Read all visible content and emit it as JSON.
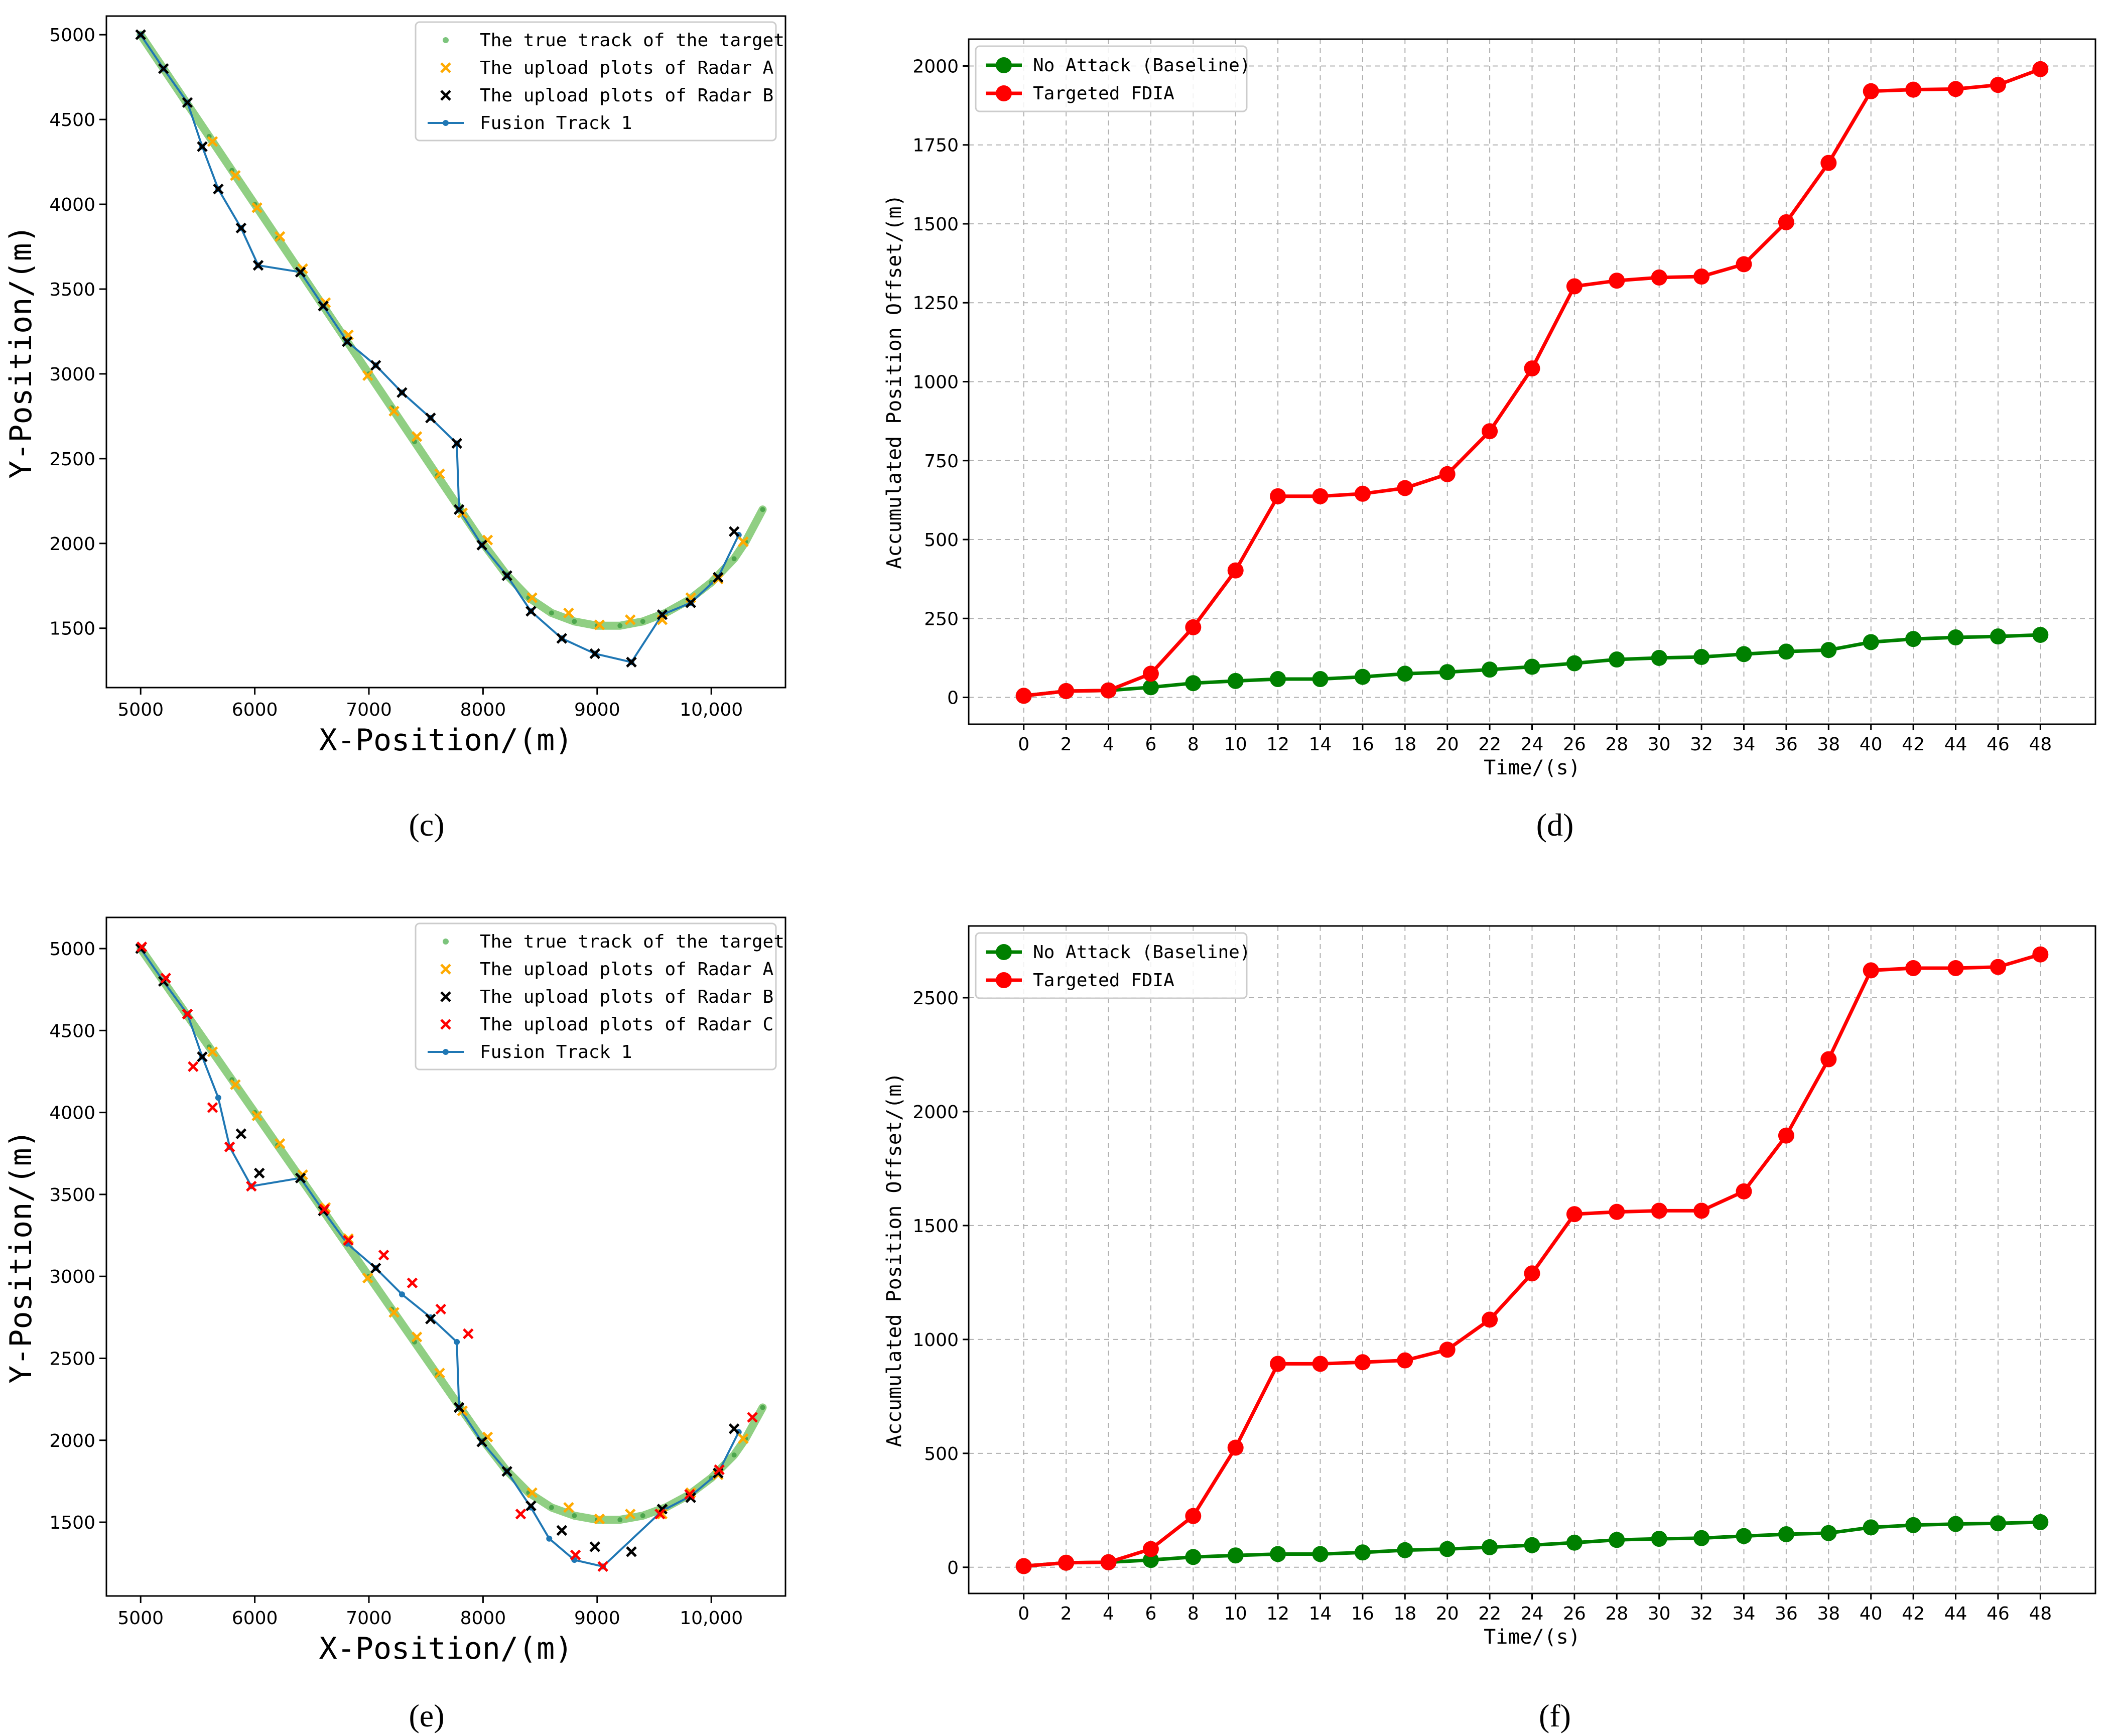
{
  "colors": {
    "green": "#008000",
    "red": "#ff0000",
    "orange": "#ffaa00",
    "black": "#000000",
    "fusion": "#1f77b4",
    "truth": "#6bbf59"
  },
  "chart_data": [
    {
      "id": "c",
      "type": "scatter",
      "caption": "(c)",
      "xlabel": "X-Position/(m)",
      "ylabel": "Y-Position/(m)",
      "xlim": [
        4700,
        10650
      ],
      "ylim": [
        1150,
        5110
      ],
      "xticks": [
        5000,
        6000,
        7000,
        8000,
        9000,
        10000
      ],
      "xtick_labels": [
        "5000",
        "6000",
        "7000",
        "8000",
        "9000",
        "10,000"
      ],
      "yticks": [
        1500,
        2000,
        2500,
        3000,
        3500,
        4000,
        4500,
        5000
      ],
      "ytick_labels": [
        "1500",
        "2000",
        "2500",
        "3000",
        "3500",
        "4000",
        "4500",
        "5000"
      ],
      "legend": [
        "The true track of the target",
        "The upload plots of Radar A",
        "The upload plots of Radar B",
        "Fusion Track 1"
      ],
      "truth": [
        [
          5000,
          5000
        ],
        [
          5200,
          4800
        ],
        [
          5400,
          4600
        ],
        [
          5600,
          4400
        ],
        [
          5800,
          4200
        ],
        [
          6000,
          4000
        ],
        [
          6200,
          3800
        ],
        [
          6400,
          3600
        ],
        [
          6600,
          3400
        ],
        [
          6800,
          3200
        ],
        [
          7000,
          3000
        ],
        [
          7200,
          2800
        ],
        [
          7400,
          2600
        ],
        [
          7600,
          2400
        ],
        [
          7800,
          2200
        ],
        [
          8000,
          2000
        ],
        [
          8200,
          1820
        ],
        [
          8400,
          1680
        ],
        [
          8600,
          1590
        ],
        [
          8800,
          1540
        ],
        [
          9000,
          1515
        ],
        [
          9200,
          1515
        ],
        [
          9400,
          1540
        ],
        [
          9600,
          1590
        ],
        [
          9800,
          1665
        ],
        [
          10000,
          1770
        ],
        [
          10200,
          1910
        ],
        [
          10300,
          2010
        ],
        [
          10450,
          2200
        ]
      ],
      "radar_a": [
        [
          5630,
          4370
        ],
        [
          5830,
          4170
        ],
        [
          6020,
          3980
        ],
        [
          6220,
          3810
        ],
        [
          6420,
          3620
        ],
        [
          6620,
          3420
        ],
        [
          6820,
          3230
        ],
        [
          6990,
          2990
        ],
        [
          7220,
          2780
        ],
        [
          7420,
          2630
        ],
        [
          7620,
          2410
        ],
        [
          7820,
          2180
        ],
        [
          8040,
          2020
        ],
        [
          8430,
          1680
        ],
        [
          8750,
          1590
        ],
        [
          9020,
          1520
        ],
        [
          9290,
          1550
        ],
        [
          9570,
          1550
        ],
        [
          9820,
          1680
        ],
        [
          10060,
          1790
        ],
        [
          10280,
          2010
        ]
      ],
      "radar_b": [
        [
          5000,
          5000
        ],
        [
          5200,
          4800
        ],
        [
          5410,
          4600
        ],
        [
          5540,
          4340
        ],
        [
          5680,
          4090
        ],
        [
          5880,
          3860
        ],
        [
          6030,
          3640
        ],
        [
          6400,
          3600
        ],
        [
          6600,
          3400
        ],
        [
          6810,
          3190
        ],
        [
          7060,
          3050
        ],
        [
          7290,
          2890
        ],
        [
          7540,
          2740
        ],
        [
          7770,
          2590
        ],
        [
          7790,
          2200
        ],
        [
          7990,
          1990
        ],
        [
          8210,
          1810
        ],
        [
          8420,
          1600
        ],
        [
          8690,
          1440
        ],
        [
          8980,
          1350
        ],
        [
          9300,
          1300
        ],
        [
          9570,
          1580
        ],
        [
          9820,
          1650
        ],
        [
          10060,
          1800
        ],
        [
          10200,
          2070
        ]
      ],
      "radar_c": [],
      "fusion": [
        [
          5000,
          5000
        ],
        [
          5200,
          4800
        ],
        [
          5410,
          4600
        ],
        [
          5540,
          4340
        ],
        [
          5680,
          4090
        ],
        [
          5880,
          3860
        ],
        [
          6030,
          3640
        ],
        [
          6400,
          3600
        ],
        [
          6600,
          3400
        ],
        [
          6810,
          3190
        ],
        [
          7060,
          3050
        ],
        [
          7290,
          2890
        ],
        [
          7540,
          2740
        ],
        [
          7770,
          2590
        ],
        [
          7790,
          2200
        ],
        [
          7990,
          1990
        ],
        [
          8210,
          1810
        ],
        [
          8420,
          1600
        ],
        [
          8690,
          1440
        ],
        [
          8980,
          1350
        ],
        [
          9300,
          1300
        ],
        [
          9570,
          1580
        ],
        [
          9820,
          1650
        ],
        [
          10060,
          1800
        ],
        [
          10240,
          2050
        ]
      ]
    },
    {
      "id": "d",
      "type": "line",
      "caption": "(d)",
      "xlabel": "Time/(s)",
      "ylabel": "Accumulated Position Offset/(m)",
      "ylim": [
        -85,
        2085
      ],
      "x": [
        0,
        2,
        4,
        6,
        8,
        10,
        12,
        14,
        16,
        18,
        20,
        22,
        24,
        26,
        28,
        30,
        32,
        34,
        36,
        38,
        40,
        42,
        44,
        46,
        48
      ],
      "yticks": [
        0,
        250,
        500,
        750,
        1000,
        1250,
        1500,
        1750,
        2000
      ],
      "series": [
        {
          "name": "No Attack (Baseline)",
          "color": "#008000",
          "values": [
            5,
            20,
            22,
            32,
            45,
            52,
            58,
            58,
            65,
            75,
            80,
            88,
            97,
            108,
            120,
            125,
            128,
            137,
            145,
            150,
            175,
            185,
            190,
            193,
            198
          ]
        },
        {
          "name": "Targeted FDIA",
          "color": "#ff0000",
          "values": [
            5,
            20,
            22,
            75,
            222,
            402,
            637,
            637,
            645,
            663,
            707,
            843,
            1042,
            1302,
            1320,
            1330,
            1333,
            1372,
            1505,
            1693,
            1920,
            1925,
            1927,
            1940,
            1990
          ]
        }
      ]
    },
    {
      "id": "e",
      "type": "scatter",
      "caption": "(e)",
      "xlabel": "X-Position/(m)",
      "ylabel": "Y-Position/(m)",
      "xlim": [
        4700,
        10650
      ],
      "ylim": [
        1050,
        5190
      ],
      "xticks": [
        5000,
        6000,
        7000,
        8000,
        9000,
        10000
      ],
      "xtick_labels": [
        "5000",
        "6000",
        "7000",
        "8000",
        "9000",
        "10,000"
      ],
      "yticks": [
        1500,
        2000,
        2500,
        3000,
        3500,
        4000,
        4500,
        5000
      ],
      "ytick_labels": [
        "1500",
        "2000",
        "2500",
        "3000",
        "3500",
        "4000",
        "4500",
        "5000"
      ],
      "legend": [
        "The true track of the target",
        "The upload plots of Radar A",
        "The upload plots of Radar B",
        "The upload plots of Radar C",
        "Fusion Track 1"
      ],
      "truth": [
        [
          5000,
          5000
        ],
        [
          5200,
          4800
        ],
        [
          5400,
          4600
        ],
        [
          5600,
          4400
        ],
        [
          5800,
          4200
        ],
        [
          6000,
          4000
        ],
        [
          6200,
          3800
        ],
        [
          6400,
          3600
        ],
        [
          6600,
          3400
        ],
        [
          6800,
          3200
        ],
        [
          7000,
          3000
        ],
        [
          7200,
          2800
        ],
        [
          7400,
          2600
        ],
        [
          7600,
          2400
        ],
        [
          7800,
          2200
        ],
        [
          8000,
          2000
        ],
        [
          8200,
          1820
        ],
        [
          8400,
          1680
        ],
        [
          8600,
          1590
        ],
        [
          8800,
          1540
        ],
        [
          9000,
          1515
        ],
        [
          9200,
          1515
        ],
        [
          9400,
          1540
        ],
        [
          9600,
          1590
        ],
        [
          9800,
          1665
        ],
        [
          10000,
          1770
        ],
        [
          10200,
          1910
        ],
        [
          10300,
          2010
        ],
        [
          10450,
          2200
        ]
      ],
      "radar_a": [
        [
          5630,
          4370
        ],
        [
          5830,
          4170
        ],
        [
          6020,
          3980
        ],
        [
          6220,
          3810
        ],
        [
          6420,
          3620
        ],
        [
          6620,
          3420
        ],
        [
          6820,
          3230
        ],
        [
          6990,
          2990
        ],
        [
          7220,
          2780
        ],
        [
          7420,
          2630
        ],
        [
          7620,
          2410
        ],
        [
          7820,
          2180
        ],
        [
          8040,
          2020
        ],
        [
          8430,
          1680
        ],
        [
          8750,
          1590
        ],
        [
          9020,
          1520
        ],
        [
          9290,
          1550
        ],
        [
          9570,
          1550
        ],
        [
          9820,
          1680
        ],
        [
          10060,
          1790
        ],
        [
          10280,
          2010
        ]
      ],
      "radar_b": [
        [
          5000,
          5000
        ],
        [
          5200,
          4800
        ],
        [
          5410,
          4600
        ],
        [
          5540,
          4340
        ],
        [
          5880,
          3870
        ],
        [
          6040,
          3630
        ],
        [
          6400,
          3600
        ],
        [
          6600,
          3400
        ],
        [
          7060,
          3050
        ],
        [
          7540,
          2740
        ],
        [
          7790,
          2200
        ],
        [
          7990,
          1990
        ],
        [
          8210,
          1810
        ],
        [
          8420,
          1600
        ],
        [
          8690,
          1450
        ],
        [
          8980,
          1350
        ],
        [
          9300,
          1320
        ],
        [
          9570,
          1580
        ],
        [
          9820,
          1650
        ],
        [
          10060,
          1800
        ],
        [
          10200,
          2070
        ]
      ],
      "radar_c": [
        [
          5010,
          5010
        ],
        [
          5220,
          4820
        ],
        [
          5410,
          4600
        ],
        [
          5460,
          4280
        ],
        [
          5630,
          4030
        ],
        [
          5780,
          3790
        ],
        [
          5970,
          3550
        ],
        [
          6610,
          3410
        ],
        [
          6820,
          3220
        ],
        [
          7130,
          3130
        ],
        [
          7380,
          2960
        ],
        [
          7630,
          2800
        ],
        [
          7870,
          2650
        ],
        [
          8330,
          1550
        ],
        [
          8810,
          1300
        ],
        [
          9050,
          1230
        ],
        [
          9550,
          1550
        ],
        [
          9810,
          1670
        ],
        [
          10070,
          1820
        ],
        [
          10360,
          2140
        ]
      ],
      "fusion": [
        [
          5000,
          5000
        ],
        [
          5200,
          4800
        ],
        [
          5410,
          4600
        ],
        [
          5540,
          4340
        ],
        [
          5680,
          4090
        ],
        [
          5780,
          3790
        ],
        [
          5970,
          3550
        ],
        [
          6400,
          3600
        ],
        [
          6600,
          3400
        ],
        [
          6810,
          3200
        ],
        [
          7060,
          3050
        ],
        [
          7290,
          2890
        ],
        [
          7540,
          2750
        ],
        [
          7770,
          2600
        ],
        [
          7790,
          2200
        ],
        [
          7990,
          1990
        ],
        [
          8210,
          1810
        ],
        [
          8420,
          1590
        ],
        [
          8580,
          1400
        ],
        [
          8800,
          1270
        ],
        [
          9050,
          1230
        ],
        [
          9570,
          1570
        ],
        [
          9820,
          1660
        ],
        [
          10060,
          1800
        ],
        [
          10240,
          2050
        ]
      ]
    },
    {
      "id": "f",
      "type": "line",
      "caption": "(f)",
      "xlabel": "Time/(s)",
      "ylabel": "Accumulated Position Offset/(m)",
      "ylim": [
        -115,
        2815
      ],
      "x": [
        0,
        2,
        4,
        6,
        8,
        10,
        12,
        14,
        16,
        18,
        20,
        22,
        24,
        26,
        28,
        30,
        32,
        34,
        36,
        38,
        40,
        42,
        44,
        46,
        48
      ],
      "yticks": [
        0,
        500,
        1000,
        1500,
        2000,
        2500
      ],
      "series": [
        {
          "name": "No Attack (Baseline)",
          "color": "#008000",
          "values": [
            5,
            20,
            22,
            32,
            45,
            52,
            58,
            58,
            65,
            75,
            80,
            88,
            97,
            108,
            120,
            125,
            128,
            137,
            145,
            150,
            175,
            185,
            190,
            193,
            198
          ]
        },
        {
          "name": "Targeted FDIA",
          "color": "#ff0000",
          "values": [
            5,
            20,
            22,
            80,
            225,
            525,
            893,
            893,
            900,
            908,
            955,
            1087,
            1290,
            1550,
            1560,
            1565,
            1565,
            1650,
            1895,
            2230,
            2620,
            2630,
            2630,
            2635,
            2690
          ]
        }
      ]
    }
  ]
}
